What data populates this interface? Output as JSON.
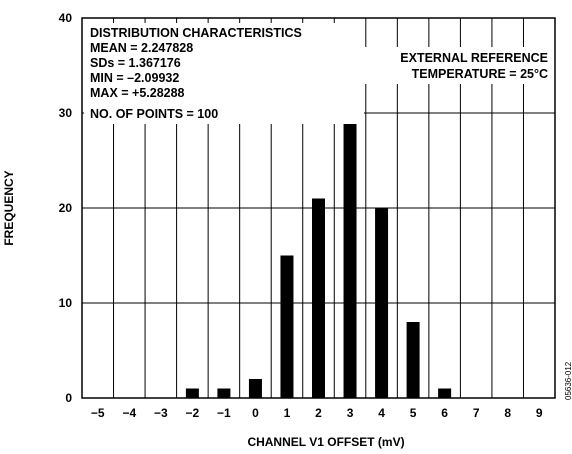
{
  "chart_data": {
    "type": "bar",
    "categories": [
      "−5",
      "−4",
      "−3",
      "−2",
      "−1",
      "0",
      "1",
      "2",
      "3",
      "4",
      "5",
      "6",
      "7",
      "8",
      "9"
    ],
    "values": [
      0,
      0,
      0,
      1,
      1,
      2,
      15,
      21,
      31,
      20,
      8,
      1,
      0,
      0,
      0
    ],
    "xlabel": "CHANNEL V1 OFFSET (mV)",
    "ylabel": "FREQUENCY",
    "ylim": [
      0,
      40
    ],
    "yticks": [
      0,
      10,
      20,
      30,
      40
    ],
    "grid": true,
    "annotations": {
      "stats": [
        "DISTRIBUTION CHARACTERISTICS",
        "MEAN = 2.247828",
        "SDs = 1.367176",
        "MIN = –2.09932",
        "MAX = +5.28288",
        "NO. OF POINTS = 100"
      ],
      "conditions": [
        "EXTERNAL REFERENCE",
        "TEMPERATURE = 25°C"
      ],
      "figure_id": "05636-012"
    },
    "colors": {
      "bars": "#000000",
      "grid": "#000000",
      "background": "#ffffff"
    }
  }
}
